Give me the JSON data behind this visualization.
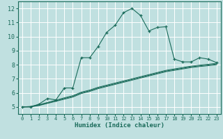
{
  "title": "",
  "xlabel": "Humidex (Indice chaleur)",
  "ylabel": "",
  "background_color": "#c0e0e0",
  "grid_color": "#ffffff",
  "line_color": "#1a6b5a",
  "xlim": [
    -0.5,
    23.5
  ],
  "ylim": [
    4.5,
    12.5
  ],
  "xticks": [
    0,
    1,
    2,
    3,
    4,
    5,
    6,
    7,
    8,
    9,
    10,
    11,
    12,
    13,
    14,
    15,
    16,
    17,
    18,
    19,
    20,
    21,
    22,
    23
  ],
  "yticks": [
    5,
    6,
    7,
    8,
    9,
    10,
    11,
    12
  ],
  "main_x": [
    0,
    1,
    2,
    3,
    4,
    5,
    6,
    7,
    8,
    9,
    10,
    11,
    12,
    13,
    14,
    15,
    16,
    17,
    18,
    19,
    20,
    21,
    22,
    23
  ],
  "main_y": [
    5.0,
    5.0,
    5.2,
    5.6,
    5.5,
    6.35,
    6.35,
    8.5,
    8.5,
    9.3,
    10.3,
    10.8,
    11.7,
    12.0,
    11.5,
    10.4,
    10.65,
    10.7,
    8.4,
    8.2,
    8.2,
    8.5,
    8.4,
    8.15
  ],
  "line2_x": [
    0,
    1,
    2,
    3,
    4,
    5,
    6,
    7,
    8,
    9,
    10,
    11,
    12,
    13,
    14,
    15,
    16,
    17,
    18,
    19,
    20,
    21,
    22,
    23
  ],
  "line2_y": [
    5.0,
    5.0,
    5.1,
    5.25,
    5.4,
    5.55,
    5.7,
    5.95,
    6.1,
    6.3,
    6.45,
    6.6,
    6.75,
    6.9,
    7.05,
    7.2,
    7.35,
    7.5,
    7.6,
    7.7,
    7.8,
    7.87,
    7.93,
    8.0
  ],
  "line3_x": [
    0,
    1,
    2,
    3,
    4,
    5,
    6,
    7,
    8,
    9,
    10,
    11,
    12,
    13,
    14,
    15,
    16,
    17,
    18,
    19,
    20,
    21,
    22,
    23
  ],
  "line3_y": [
    5.0,
    5.02,
    5.13,
    5.28,
    5.43,
    5.6,
    5.75,
    6.0,
    6.15,
    6.35,
    6.5,
    6.65,
    6.8,
    6.95,
    7.1,
    7.25,
    7.4,
    7.55,
    7.65,
    7.75,
    7.85,
    7.92,
    7.98,
    8.05
  ],
  "line4_x": [
    0,
    1,
    2,
    3,
    4,
    5,
    6,
    7,
    8,
    9,
    10,
    11,
    12,
    13,
    14,
    15,
    16,
    17,
    18,
    19,
    20,
    21,
    22,
    23
  ],
  "line4_y": [
    5.0,
    5.04,
    5.16,
    5.32,
    5.48,
    5.65,
    5.8,
    6.05,
    6.2,
    6.4,
    6.55,
    6.7,
    6.85,
    7.0,
    7.15,
    7.3,
    7.45,
    7.6,
    7.7,
    7.8,
    7.9,
    7.97,
    8.03,
    8.1
  ]
}
